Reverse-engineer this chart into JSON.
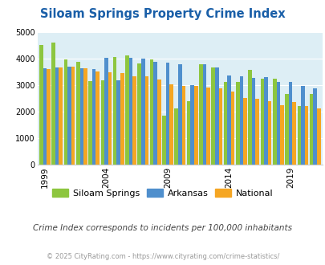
{
  "title": "Siloam Springs Property Crime Index",
  "subtitle": "Crime Index corresponds to incidents per 100,000 inhabitants",
  "footer": "© 2025 CityRating.com - https://www.cityrating.com/crime-statistics/",
  "years": [
    1999,
    2000,
    2001,
    2002,
    2003,
    2004,
    2005,
    2006,
    2007,
    2008,
    2009,
    2010,
    2011,
    2012,
    2013,
    2014,
    2015,
    2016,
    2017,
    2018,
    2019,
    2020,
    2021
  ],
  "siloam_springs": [
    4500,
    4580,
    3950,
    3880,
    3150,
    3170,
    4050,
    4120,
    3800,
    3950,
    1840,
    2100,
    2390,
    3770,
    3650,
    3120,
    3110,
    3570,
    3220,
    3220,
    2650,
    2200,
    2650
  ],
  "arkansas": [
    3620,
    3660,
    3700,
    3620,
    3600,
    4030,
    3160,
    4020,
    3990,
    3880,
    3850,
    3770,
    3000,
    3780,
    3660,
    3360,
    3330,
    3260,
    3280,
    3100,
    3100,
    2950,
    2870
  ],
  "national": [
    3600,
    3650,
    3670,
    3620,
    3510,
    3480,
    3440,
    3330,
    3310,
    3200,
    3020,
    2950,
    2950,
    2900,
    2870,
    2760,
    2490,
    2460,
    2370,
    2230,
    2360,
    2200,
    2120
  ],
  "siloam_color": "#8dc63f",
  "arkansas_color": "#4f8fcd",
  "national_color": "#f5a623",
  "bg_color": "#ddeef5",
  "ylim": [
    0,
    5000
  ],
  "yticks": [
    0,
    1000,
    2000,
    3000,
    4000,
    5000
  ],
  "xtick_years": [
    1999,
    2004,
    2009,
    2014,
    2019
  ],
  "title_color": "#1a5fa8",
  "subtitle_color": "#444444",
  "footer_color": "#999999"
}
